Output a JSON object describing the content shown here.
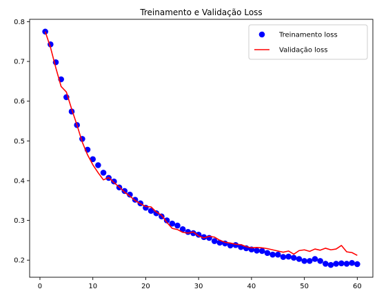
{
  "chart_data": {
    "type": "line",
    "title": "Treinamento e Validação Loss",
    "xlabel": "",
    "ylabel": "",
    "xlim": [
      -1.95,
      62.95
    ],
    "ylim": [
      0.157,
      0.806
    ],
    "xticks": [
      0,
      10,
      20,
      30,
      40,
      50,
      60
    ],
    "yticks": [
      0.2,
      0.3,
      0.4,
      0.5,
      0.6,
      0.7,
      0.8
    ],
    "legend_position": "top-right",
    "x": [
      1,
      2,
      3,
      4,
      5,
      6,
      7,
      8,
      9,
      10,
      11,
      12,
      13,
      14,
      15,
      16,
      17,
      18,
      19,
      20,
      21,
      22,
      23,
      24,
      25,
      26,
      27,
      28,
      29,
      30,
      31,
      32,
      33,
      34,
      35,
      36,
      37,
      38,
      39,
      40,
      41,
      42,
      43,
      44,
      45,
      46,
      47,
      48,
      49,
      50,
      51,
      52,
      53,
      54,
      55,
      56,
      57,
      58,
      59,
      60
    ],
    "series": [
      {
        "name": "Treinamento loss",
        "style": "scatter",
        "color": "#0000ff",
        "values": [
          0.775,
          0.743,
          0.698,
          0.655,
          0.61,
          0.574,
          0.54,
          0.505,
          0.478,
          0.454,
          0.439,
          0.42,
          0.407,
          0.398,
          0.383,
          0.374,
          0.365,
          0.352,
          0.343,
          0.332,
          0.324,
          0.318,
          0.31,
          0.3,
          0.292,
          0.287,
          0.278,
          0.271,
          0.268,
          0.264,
          0.258,
          0.256,
          0.248,
          0.244,
          0.242,
          0.237,
          0.238,
          0.233,
          0.23,
          0.227,
          0.224,
          0.223,
          0.218,
          0.214,
          0.214,
          0.208,
          0.209,
          0.206,
          0.203,
          0.198,
          0.198,
          0.203,
          0.198,
          0.191,
          0.188,
          0.191,
          0.192,
          0.191,
          0.193,
          0.19
        ]
      },
      {
        "name": "Validação loss",
        "style": "line",
        "color": "#ff0000",
        "values": [
          0.775,
          0.735,
          0.684,
          0.637,
          0.623,
          0.58,
          0.54,
          0.497,
          0.465,
          0.44,
          0.42,
          0.402,
          0.408,
          0.395,
          0.384,
          0.371,
          0.361,
          0.35,
          0.342,
          0.335,
          0.334,
          0.321,
          0.313,
          0.295,
          0.28,
          0.277,
          0.27,
          0.268,
          0.271,
          0.261,
          0.256,
          0.26,
          0.258,
          0.25,
          0.245,
          0.243,
          0.24,
          0.239,
          0.234,
          0.231,
          0.232,
          0.231,
          0.229,
          0.226,
          0.223,
          0.22,
          0.223,
          0.215,
          0.224,
          0.226,
          0.222,
          0.228,
          0.225,
          0.23,
          0.226,
          0.228,
          0.237,
          0.221,
          0.219,
          0.212
        ]
      }
    ]
  }
}
